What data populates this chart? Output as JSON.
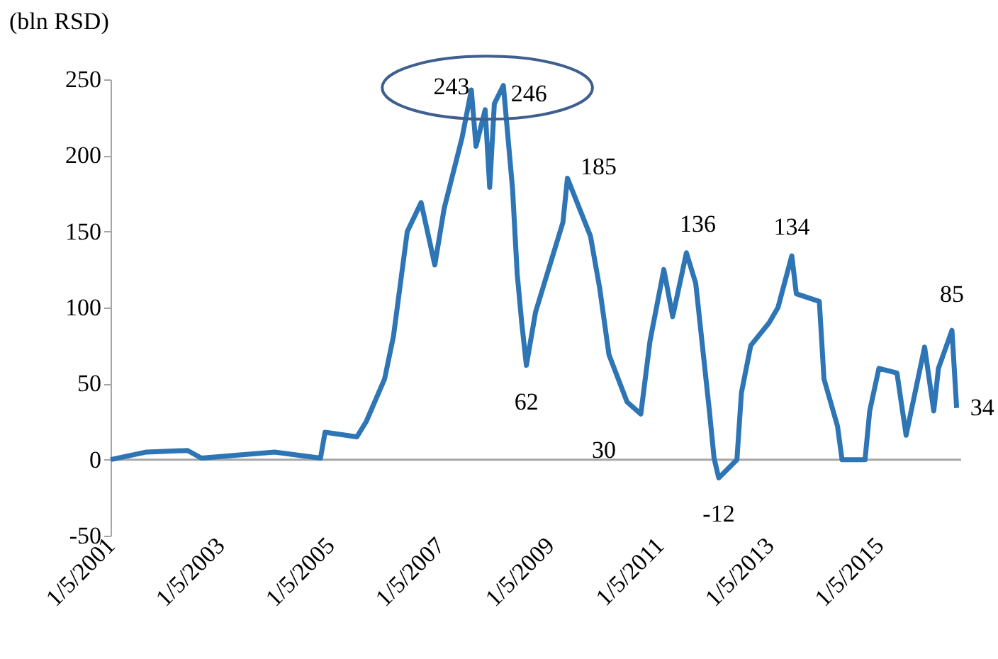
{
  "chart_data": {
    "type": "line",
    "ylabel": "(bln RSD)",
    "x": [
      "2001-01-05",
      "2001-09",
      "2002-06",
      "2002-09",
      "2003-05",
      "2004-01",
      "2004-11",
      "2004-12",
      "2005-07",
      "2005-09",
      "2006-01",
      "2006-03",
      "2006-06",
      "2006-09",
      "2006-12",
      "2007-02",
      "2007-06",
      "2007-08",
      "2007-09",
      "2007-11",
      "2007-12",
      "2008-01",
      "2008-03",
      "2008-05",
      "2008-06",
      "2008-07",
      "2008-08",
      "2008-10",
      "2009-04",
      "2009-05",
      "2009-10",
      "2009-12",
      "2010-02",
      "2010-06",
      "2010-09",
      "2010-11",
      "2011-02",
      "2011-04",
      "2011-07",
      "2011-09",
      "2011-12",
      "2012-01",
      "2012-02",
      "2012-06",
      "2012-07",
      "2012-09",
      "2013-01",
      "2013-03",
      "2013-06",
      "2013-07",
      "2013-12",
      "2014-01",
      "2014-04",
      "2014-05",
      "2014-10",
      "2014-11",
      "2015-01",
      "2015-05",
      "2015-07",
      "2015-11",
      "2016-01",
      "2016-02",
      "2016-05",
      "2016-06"
    ],
    "series": [
      {
        "color": "#2e75b6",
        "values": [
          0,
          5,
          6,
          1,
          3,
          5,
          1,
          18,
          15,
          25,
          53,
          81,
          150,
          169,
          128,
          165,
          212,
          243,
          206,
          230,
          179,
          234,
          246,
          178,
          122,
          90,
          62,
          97,
          156,
          185,
          147,
          113,
          69,
          38,
          30,
          78,
          125,
          94,
          136,
          116,
          32,
          1,
          -12,
          0,
          44,
          75,
          90,
          100,
          134,
          109,
          104,
          53,
          22,
          0,
          0,
          32,
          60,
          57,
          16,
          74,
          32,
          60,
          85,
          34
        ]
      }
    ],
    "xlim": [
      "2001-01-05",
      "2016-07-01"
    ],
    "xticks": [
      {
        "value": "2001-01-05",
        "label": "1/5/2001"
      },
      {
        "value": "2003-01-05",
        "label": "1/5/2003"
      },
      {
        "value": "2005-01-05",
        "label": "1/5/2005"
      },
      {
        "value": "2007-01-05",
        "label": "1/5/2007"
      },
      {
        "value": "2009-01-05",
        "label": "1/5/2009"
      },
      {
        "value": "2011-01-05",
        "label": "1/5/2011"
      },
      {
        "value": "2013-01-05",
        "label": "1/5/2013"
      },
      {
        "value": "2015-01-05",
        "label": "1/5/2015"
      }
    ],
    "ylim": [
      -50,
      250
    ],
    "yticks": [
      -50,
      0,
      50,
      100,
      150,
      200,
      250
    ],
    "ref_lines": [
      {
        "axis": "y",
        "value": 0,
        "color": "#a6a6a6"
      }
    ],
    "annotations": [
      {
        "text": "243",
        "x": "2007-08",
        "y": 243
      },
      {
        "text": "246",
        "x": "2008-03",
        "y": 246
      },
      {
        "text": "62",
        "x": "2008-08",
        "y": 62
      },
      {
        "text": "185",
        "x": "2009-05",
        "y": 185
      },
      {
        "text": "30",
        "x": "2010-09",
        "y": 30
      },
      {
        "text": "136",
        "x": "2011-07",
        "y": 136
      },
      {
        "text": "-12",
        "x": "2012-02",
        "y": -12
      },
      {
        "text": "134",
        "x": "2013-06",
        "y": 134
      },
      {
        "text": "85",
        "x": "2016-05",
        "y": 85
      },
      {
        "text": "34",
        "x": "2016-06",
        "y": 34
      }
    ],
    "grid": false,
    "marker": "none",
    "line_style": "solid"
  }
}
